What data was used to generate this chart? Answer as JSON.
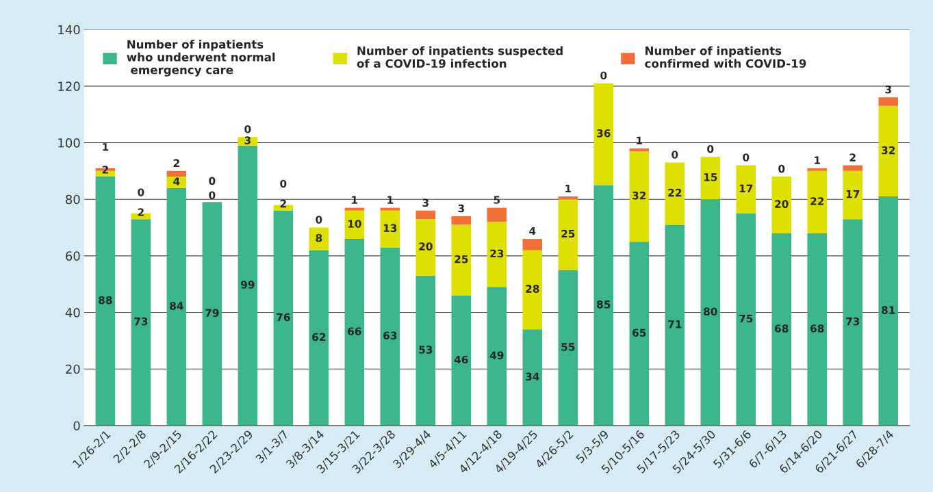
{
  "chart_data": {
    "type": "bar",
    "stacked": true,
    "categories": [
      "1/26-2/1",
      "2/2-2/8",
      "2/9-2/15",
      "2/16-2/22",
      "2/23-2/29",
      "3/1-3/7",
      "3/8-3/14",
      "3/15-3/21",
      "3/22-3/28",
      "3/29-4/4",
      "4/5-4/11",
      "4/12-4/18",
      "4/19-4/25",
      "4/26-5/2",
      "5/3-5/9",
      "5/10-5/16",
      "5/17-5/23",
      "5/24-5/30",
      "5/31-6/6",
      "6/7-6/13",
      "6/14-6/20",
      "6/21-6/27",
      "6/28-7/4"
    ],
    "series": [
      {
        "name": "Number of inpatients\nwho underwent normal\n emergency care",
        "color": "#3bb58a",
        "values": [
          88,
          73,
          84,
          79,
          99,
          76,
          62,
          66,
          63,
          53,
          46,
          49,
          34,
          55,
          85,
          65,
          71,
          80,
          75,
          68,
          68,
          73,
          81
        ]
      },
      {
        "name": "Number of inpatients suspected\nof a COVID-19 infection",
        "color": "#dde000",
        "values": [
          2,
          2,
          4,
          0,
          3,
          2,
          8,
          10,
          13,
          20,
          25,
          23,
          28,
          25,
          36,
          32,
          22,
          15,
          17,
          20,
          22,
          17,
          32
        ]
      },
      {
        "name": "Number of inpatients\nconfirmed with COVID-19",
        "color": "#f07038",
        "values": [
          1,
          0,
          2,
          0,
          0,
          0,
          0,
          1,
          1,
          3,
          3,
          5,
          4,
          1,
          0,
          1,
          0,
          0,
          0,
          0,
          1,
          2,
          3
        ]
      }
    ],
    "ylim": [
      0,
      140
    ],
    "yticks": [
      0,
      20,
      40,
      60,
      80,
      100,
      120,
      140
    ],
    "grid": "y",
    "legend": "top",
    "data_labels": true
  }
}
